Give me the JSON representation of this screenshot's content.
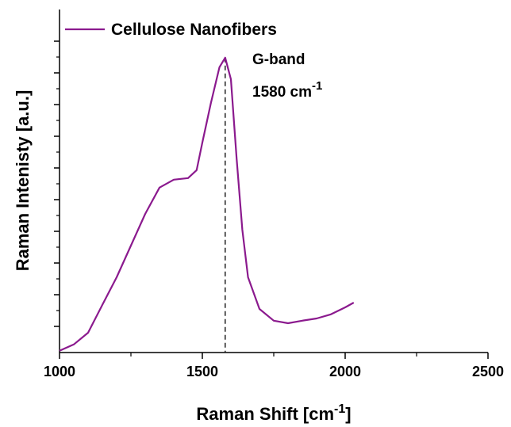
{
  "chart_data": {
    "type": "line",
    "xlabel": [
      "Raman Shift [cm",
      "-1",
      "]"
    ],
    "ylabel": "Raman Intenisty [a.u.]",
    "x": [
      1000,
      1050,
      1100,
      1150,
      1200,
      1250,
      1300,
      1350,
      1400,
      1450,
      1480,
      1500,
      1530,
      1560,
      1580,
      1600,
      1620,
      1640,
      1660,
      1700,
      1750,
      1800,
      1850,
      1900,
      1950,
      2000,
      2030
    ],
    "series": [
      {
        "name": "Cellulose Nanofibers",
        "color": "#8b1a8e",
        "values": [
          0.23,
          0.43,
          0.8,
          1.68,
          2.55,
          3.55,
          4.55,
          5.38,
          5.63,
          5.68,
          5.93,
          6.8,
          8.05,
          9.18,
          9.48,
          8.8,
          6.3,
          4.05,
          2.55,
          1.55,
          1.18,
          1.1,
          1.18,
          1.25,
          1.38,
          1.6,
          1.75
        ]
      }
    ],
    "xlim": [
      1000,
      2500
    ],
    "xticks": [
      1000,
      1500,
      2000,
      2500
    ],
    "ylim": [
      0.175,
      11
    ],
    "yticks": [
      1,
      2,
      3,
      4,
      5,
      6,
      7,
      8,
      9,
      10
    ],
    "annotations": {
      "band": "G-band",
      "position": [
        "1580 cm",
        "-1"
      ],
      "peak_x": 1580
    },
    "legend": "upper left"
  }
}
